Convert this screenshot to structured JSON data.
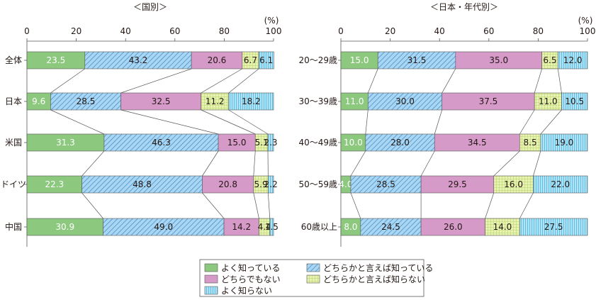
{
  "unit_label": "(%)",
  "legend": {
    "items": [
      {
        "key": "s0",
        "label": "よく知っている"
      },
      {
        "key": "s1",
        "label": "どちらかと言えば知っている"
      },
      {
        "key": "s2",
        "label": "どちらでもない"
      },
      {
        "key": "s3",
        "label": "どちらかと言えば知らない"
      },
      {
        "key": "s4",
        "label": "よく知らない"
      }
    ]
  },
  "colors": {
    "s0": "#8cc97e",
    "s1": "#a9d6f2",
    "s1_hatch": "#3f86c6",
    "s2": "#d69ac9",
    "s3": "#e9f2b0",
    "s3_grid": "#a3c95a",
    "s4": "#b3e2f5",
    "s4_stripe": "#5cbfe6",
    "axis": "#595757",
    "connector": "#595757"
  },
  "chart_data": [
    {
      "type": "bar",
      "orientation": "horizontal",
      "stacked": true,
      "title": "＜国別＞",
      "xlim": [
        0,
        100
      ],
      "xticks": [
        0,
        20,
        40,
        60,
        80,
        100
      ],
      "categories": [
        "全体",
        "日本",
        "米国",
        "ドイツ",
        "中国"
      ],
      "series": [
        {
          "name": "よく知っている",
          "values": [
            23.5,
            9.6,
            31.3,
            22.3,
            30.9
          ]
        },
        {
          "name": "どちらかと言えば知っている",
          "values": [
            43.2,
            28.5,
            46.3,
            48.8,
            49.0
          ]
        },
        {
          "name": "どちらでもない",
          "values": [
            20.6,
            32.5,
            15.0,
            20.8,
            14.2
          ]
        },
        {
          "name": "どちらかと言えば知らない",
          "values": [
            6.7,
            11.2,
            5.1,
            5.9,
            4.4
          ]
        },
        {
          "name": "よく知らない",
          "values": [
            6.1,
            18.2,
            2.3,
            2.2,
            1.5
          ]
        }
      ],
      "labels": [
        [
          "23.5",
          "43.2",
          "20.6",
          "6.7",
          "6.1"
        ],
        [
          "9.6",
          "28.5",
          "32.5",
          "11.2",
          "18.2"
        ],
        [
          "31.3",
          "46.3",
          "15.0",
          "5.1",
          "2.3"
        ],
        [
          "22.3",
          "48.8",
          "20.8",
          "5.9",
          "2.2"
        ],
        [
          "30.9",
          "49.0",
          "14.2",
          "4.4",
          "1.5"
        ]
      ]
    },
    {
      "type": "bar",
      "orientation": "horizontal",
      "stacked": true,
      "title": "＜日本・年代別＞",
      "xlim": [
        0,
        100
      ],
      "xticks": [
        0,
        20,
        40,
        60,
        80,
        100
      ],
      "categories": [
        "20～29歳",
        "30～39歳",
        "40～49歳",
        "50～59歳",
        "60歳以上"
      ],
      "series": [
        {
          "name": "よく知っている",
          "values": [
            15.0,
            11.0,
            10.0,
            4.0,
            8.0
          ]
        },
        {
          "name": "どちらかと言えば知っている",
          "values": [
            31.5,
            30.0,
            28.0,
            28.5,
            24.5
          ]
        },
        {
          "name": "どちらでもない",
          "values": [
            35.0,
            37.5,
            34.5,
            29.5,
            26.0
          ]
        },
        {
          "name": "どちらかと言えば知らない",
          "values": [
            6.5,
            11.0,
            8.5,
            16.0,
            14.0
          ]
        },
        {
          "name": "よく知らない",
          "values": [
            12.0,
            10.5,
            19.0,
            22.0,
            27.5
          ]
        }
      ],
      "labels": [
        [
          "15.0",
          "31.5",
          "35.0",
          "6.5",
          "12.0"
        ],
        [
          "11.0",
          "30.0",
          "37.5",
          "11.0",
          "10.5"
        ],
        [
          "10.0",
          "28.0",
          "34.5",
          "8.5",
          "19.0"
        ],
        [
          "4.0",
          "28.5",
          "29.5",
          "16.0",
          "22.0"
        ],
        [
          "8.0",
          "24.5",
          "26.0",
          "14.0",
          "27.5"
        ]
      ]
    }
  ]
}
